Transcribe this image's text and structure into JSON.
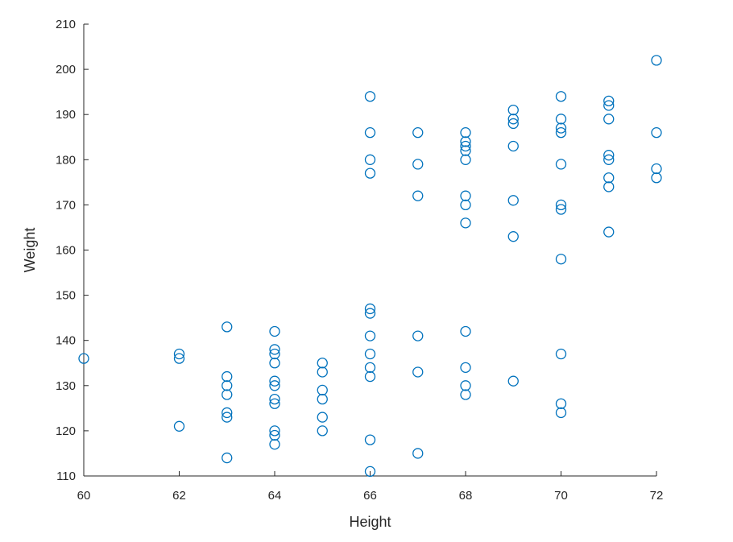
{
  "chart_data": {
    "type": "scatter",
    "title": "",
    "xlabel": "Height",
    "ylabel": "Weight",
    "xlim": [
      60,
      72
    ],
    "ylim": [
      110,
      210
    ],
    "xticks": [
      "60",
      "62",
      "64",
      "66",
      "68",
      "70",
      "72"
    ],
    "yticks": [
      "110",
      "120",
      "130",
      "140",
      "150",
      "160",
      "170",
      "180",
      "190",
      "200",
      "210"
    ],
    "marker": "circle",
    "color": "#0072BD",
    "grid": false,
    "points": [
      [
        60,
        136
      ],
      [
        62,
        137
      ],
      [
        62,
        136
      ],
      [
        62,
        121
      ],
      [
        63,
        143
      ],
      [
        63,
        132
      ],
      [
        63,
        130
      ],
      [
        63,
        128
      ],
      [
        63,
        124
      ],
      [
        63,
        123
      ],
      [
        63,
        114
      ],
      [
        64,
        142
      ],
      [
        64,
        138
      ],
      [
        64,
        137
      ],
      [
        64,
        135
      ],
      [
        64,
        131
      ],
      [
        64,
        130
      ],
      [
        64,
        127
      ],
      [
        64,
        126
      ],
      [
        64,
        120
      ],
      [
        64,
        119
      ],
      [
        64,
        117
      ],
      [
        65,
        135
      ],
      [
        65,
        133
      ],
      [
        65,
        129
      ],
      [
        65,
        127
      ],
      [
        65,
        123
      ],
      [
        65,
        120
      ],
      [
        66,
        194
      ],
      [
        66,
        186
      ],
      [
        66,
        180
      ],
      [
        66,
        177
      ],
      [
        66,
        147
      ],
      [
        66,
        146
      ],
      [
        66,
        141
      ],
      [
        66,
        137
      ],
      [
        66,
        134
      ],
      [
        66,
        132
      ],
      [
        66,
        118
      ],
      [
        66,
        111
      ],
      [
        67,
        186
      ],
      [
        67,
        179
      ],
      [
        67,
        172
      ],
      [
        67,
        141
      ],
      [
        67,
        133
      ],
      [
        67,
        115
      ],
      [
        68,
        186
      ],
      [
        68,
        184
      ],
      [
        68,
        183
      ],
      [
        68,
        182
      ],
      [
        68,
        180
      ],
      [
        68,
        172
      ],
      [
        68,
        170
      ],
      [
        68,
        166
      ],
      [
        68,
        142
      ],
      [
        68,
        134
      ],
      [
        68,
        130
      ],
      [
        68,
        128
      ],
      [
        69,
        191
      ],
      [
        69,
        189
      ],
      [
        69,
        188
      ],
      [
        69,
        183
      ],
      [
        69,
        171
      ],
      [
        69,
        163
      ],
      [
        69,
        131
      ],
      [
        70,
        194
      ],
      [
        70,
        189
      ],
      [
        70,
        187
      ],
      [
        70,
        186
      ],
      [
        70,
        179
      ],
      [
        70,
        170
      ],
      [
        70,
        169
      ],
      [
        70,
        158
      ],
      [
        70,
        137
      ],
      [
        70,
        126
      ],
      [
        70,
        124
      ],
      [
        71,
        193
      ],
      [
        71,
        192
      ],
      [
        71,
        189
      ],
      [
        71,
        181
      ],
      [
        71,
        180
      ],
      [
        71,
        176
      ],
      [
        71,
        174
      ],
      [
        71,
        164
      ],
      [
        72,
        202
      ],
      [
        72,
        186
      ],
      [
        72,
        178
      ],
      [
        72,
        176
      ]
    ]
  }
}
